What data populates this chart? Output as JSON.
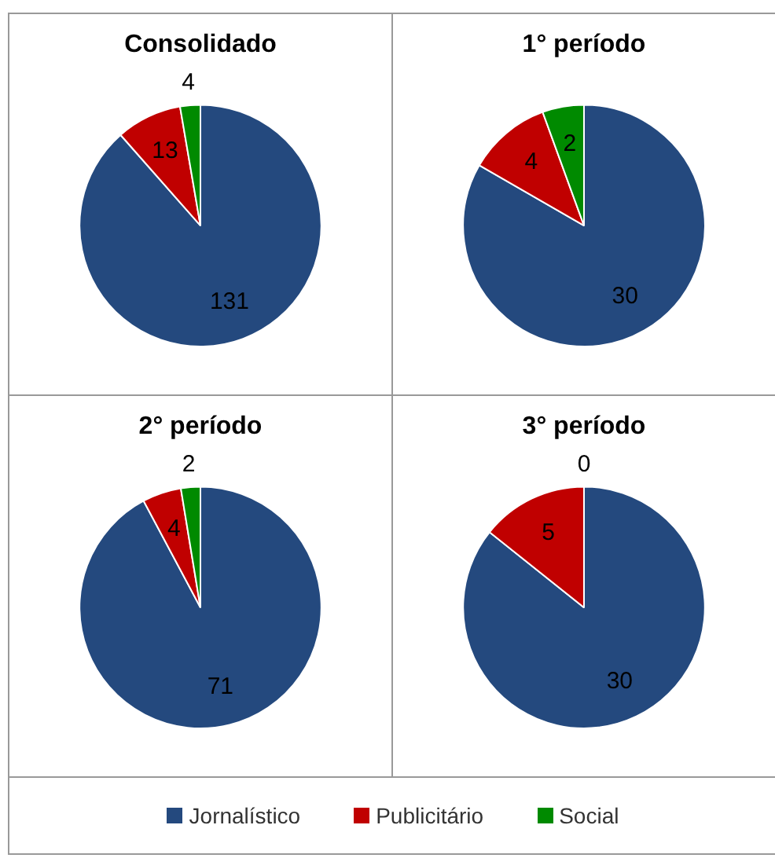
{
  "chart_data": [
    {
      "type": "pie",
      "title": "Consolidado",
      "categories": [
        "Jornalístico",
        "Publicitário",
        "Social"
      ],
      "values": [
        131,
        13,
        4
      ],
      "colors": [
        "#24497e",
        "#c00000",
        "#008a00"
      ],
      "data_labels": true,
      "legend": "bottom"
    },
    {
      "type": "pie",
      "title": "1° período",
      "categories": [
        null,
        null,
        null
      ],
      "values": [
        30,
        4,
        2
      ],
      "colors": [
        "#24497e",
        "#c00000",
        "#008a00"
      ],
      "data_labels": true
    },
    {
      "type": "pie",
      "title": "2° período",
      "categories": [
        null,
        null,
        null
      ],
      "values": [
        71,
        4,
        2
      ],
      "colors": [
        "#24497e",
        "#c00000",
        "#008a00"
      ],
      "data_labels": true
    },
    {
      "type": "pie",
      "title": "3° período",
      "categories": [
        null,
        null,
        null
      ],
      "values": [
        30,
        5,
        0
      ],
      "colors": [
        "#24497e",
        "#c00000",
        "#008a00"
      ],
      "value_labels": [
        "30",
        "5",
        "0"
      ]
    }
  ]
}
